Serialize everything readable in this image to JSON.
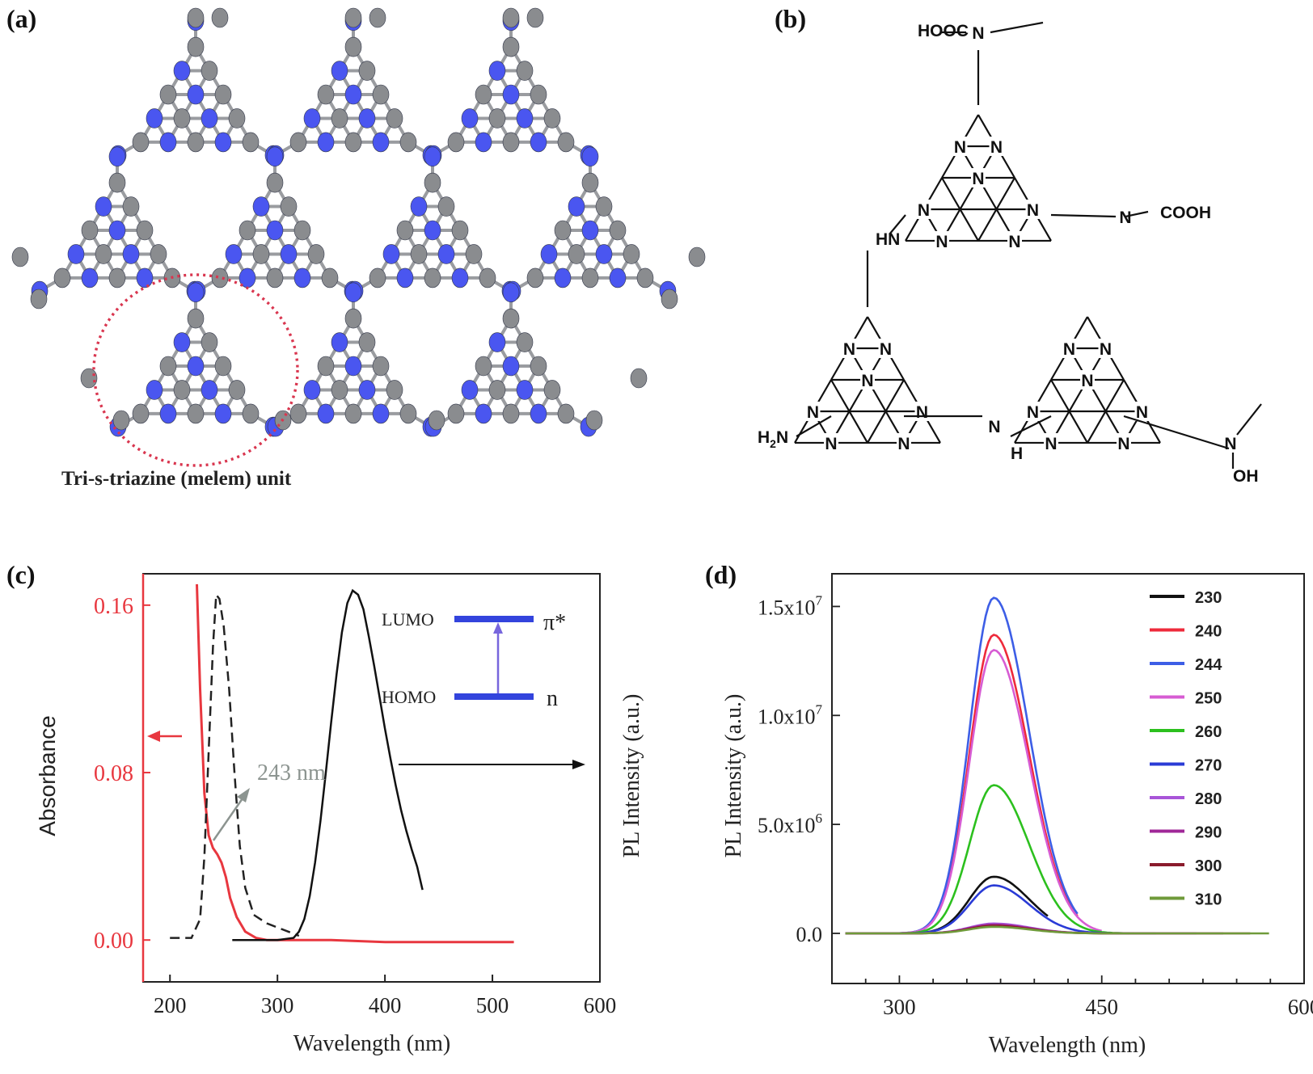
{
  "panels": {
    "a": "(a)",
    "b": "(b)",
    "c": "(c)",
    "d": "(d)"
  },
  "panel_a": {
    "caption": "Tri-s-triazine (melem) unit",
    "colors": {
      "nitrogen": "#4a56f0",
      "carbon": "#8a8c8f",
      "highlight": "#d9364f"
    }
  },
  "panel_b": {
    "substituents": {
      "top": "HOOC",
      "right": "COOH",
      "nh_left": "HN",
      "amine": "H2N",
      "nh_bottom": "H",
      "oh": "OH"
    },
    "atom_N": "N"
  },
  "chart_data": [
    {
      "type": "line",
      "panel": "c",
      "xlabel": "Wavelength (nm)",
      "ylabel_left": "Absorbance",
      "ylabel_right": "PL Intensity (a.u.)",
      "xlim": [
        175,
        600
      ],
      "ylim": [
        -0.02,
        0.175
      ],
      "xticks": [
        200,
        300,
        400,
        500,
        600
      ],
      "yticks": [
        0.0,
        0.08,
        0.16
      ],
      "ytick_labels": [
        "0.00",
        "0.08",
        "0.16"
      ],
      "left_axis_color": "#e8373f",
      "annotations": {
        "peak": "243 nm",
        "lumo": "LUMO",
        "homo": "HOMO",
        "pi_star": "π*",
        "n": "n"
      },
      "series": [
        {
          "style": "absorbance",
          "color": "#e8373f",
          "dash": false,
          "x": [
            225,
            228,
            232,
            236,
            240,
            244,
            248,
            252,
            256,
            262,
            270,
            280,
            290,
            300,
            350,
            400,
            450,
            520
          ],
          "y": [
            0.17,
            0.12,
            0.07,
            0.05,
            0.044,
            0.041,
            0.037,
            0.03,
            0.02,
            0.011,
            0.004,
            0.001,
            0.0,
            0.0,
            0.0,
            -0.001,
            -0.001,
            -0.001
          ]
        },
        {
          "style": "excitation",
          "color": "#222222",
          "dash": true,
          "x": [
            200,
            220,
            228,
            232,
            236,
            240,
            243,
            246,
            250,
            255,
            260,
            265,
            270,
            278,
            290,
            300,
            310,
            320
          ],
          "y": [
            0.001,
            0.001,
            0.01,
            0.04,
            0.09,
            0.14,
            0.165,
            0.163,
            0.15,
            0.12,
            0.08,
            0.045,
            0.025,
            0.012,
            0.008,
            0.006,
            0.004,
            0.002
          ]
        },
        {
          "style": "emission",
          "color": "#111111",
          "dash": false,
          "x": [
            258,
            300,
            315,
            320,
            325,
            330,
            335,
            340,
            345,
            350,
            355,
            360,
            365,
            370,
            375,
            380,
            385,
            390,
            395,
            400,
            405,
            410,
            415,
            420,
            425,
            430,
            435
          ],
          "y": [
            0.0,
            0.0,
            0.001,
            0.004,
            0.01,
            0.021,
            0.037,
            0.057,
            0.08,
            0.104,
            0.127,
            0.147,
            0.161,
            0.167,
            0.165,
            0.158,
            0.145,
            0.131,
            0.116,
            0.101,
            0.087,
            0.074,
            0.062,
            0.052,
            0.043,
            0.035,
            0.024
          ]
        }
      ]
    },
    {
      "type": "line",
      "panel": "d",
      "xlabel": "Wavelength (nm)",
      "ylabel": "PL Intensity (a.u.)",
      "xlim": [
        250,
        600
      ],
      "ylim": [
        -2300000,
        16500000
      ],
      "xticks": [
        300,
        450,
        600
      ],
      "yticks": [
        0,
        5000000,
        10000000,
        15000000
      ],
      "ytick_labels": [
        {
          "base": "0.0",
          "exp": ""
        },
        {
          "base": "5.0x10",
          "exp": "6"
        },
        {
          "base": "1.0x10",
          "exp": "7"
        },
        {
          "base": "1.5x10",
          "exp": "7"
        }
      ],
      "series": [
        {
          "name": "230",
          "color": "#111111",
          "peak": 2600000,
          "end": 410
        },
        {
          "name": "240",
          "color": "#ee2a3b",
          "peak": 13700000,
          "end": 433
        },
        {
          "name": "244",
          "color": "#3d5ee6",
          "peak": 15400000,
          "end": 433
        },
        {
          "name": "250",
          "color": "#d75cd3",
          "peak": 13000000,
          "end": 450
        },
        {
          "name": "260",
          "color": "#2cc01e",
          "peak": 6800000,
          "end": 470
        },
        {
          "name": "270",
          "color": "#2a3bd6",
          "peak": 2200000,
          "end": 490
        },
        {
          "name": "280",
          "color": "#a855d8",
          "peak": 450000,
          "end": 520
        },
        {
          "name": "290",
          "color": "#a02898",
          "peak": 400000,
          "end": 540
        },
        {
          "name": "300",
          "color": "#8a1b2c",
          "peak": 350000,
          "end": 560
        },
        {
          "name": "310",
          "color": "#6f9a3a",
          "peak": 300000,
          "end": 575
        }
      ]
    }
  ]
}
